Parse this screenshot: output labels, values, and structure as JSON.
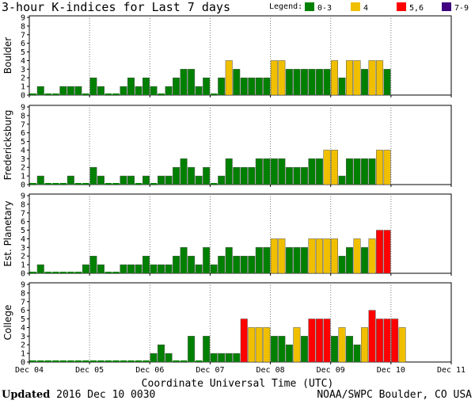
{
  "title": "3-hour K-indices for Last 7 days",
  "legend": {
    "label": "Legend:",
    "items": [
      {
        "label": "0-3",
        "color": "#008000"
      },
      {
        "label": "4",
        "color": "#f0c000"
      },
      {
        "label": "5,6",
        "color": "#ff0000"
      },
      {
        "label": "7-9",
        "color": "#400080"
      }
    ]
  },
  "footer": {
    "updated_label": "Updated",
    "updated_value": "2016 Dec 10 0030",
    "credit": "NOAA/SWPC Boulder, CO USA"
  },
  "chart_data": {
    "type": "bar",
    "xlabel": "Coordinate Universal Time (UTC)",
    "x_ticks": [
      "Dec 04",
      "Dec 05",
      "Dec 06",
      "Dec 07",
      "Dec 08",
      "Dec 09",
      "Dec 10",
      "Dec 11"
    ],
    "ylim": [
      0,
      9
    ],
    "y_ticks": [
      0,
      1,
      2,
      3,
      4,
      5,
      6,
      7,
      8,
      9
    ],
    "bins_per_day": 8,
    "days": 7,
    "color_scale": {
      "0-3": "#008000",
      "4": "#f0c000",
      "5,6": "#ff0000",
      "7-9": "#400080"
    },
    "panels": [
      {
        "name": "Boulder",
        "values": [
          0,
          1,
          0,
          0,
          1,
          1,
          1,
          0,
          2,
          1,
          0,
          0,
          1,
          2,
          1,
          2,
          1,
          0,
          1,
          2,
          3,
          3,
          1,
          2,
          0,
          2,
          4,
          3,
          2,
          2,
          2,
          2,
          4,
          4,
          3,
          3,
          3,
          3,
          3,
          3,
          4,
          2,
          4,
          4,
          3,
          4,
          4,
          3
        ]
      },
      {
        "name": "Fredericksburg",
        "values": [
          0,
          1,
          0,
          0,
          0,
          1,
          0,
          0,
          2,
          1,
          0,
          0,
          1,
          1,
          0,
          1,
          0,
          1,
          1,
          2,
          3,
          2,
          1,
          2,
          0,
          1,
          3,
          2,
          2,
          2,
          3,
          3,
          3,
          3,
          2,
          2,
          2,
          3,
          3,
          4,
          4,
          1,
          3,
          3,
          3,
          3,
          4,
          4
        ]
      },
      {
        "name": "Est. Planetary",
        "values": [
          0,
          1,
          0,
          0,
          0,
          0,
          0,
          1,
          2,
          1,
          0,
          0,
          1,
          1,
          1,
          2,
          1,
          1,
          1,
          2,
          3,
          2,
          1,
          3,
          1,
          2,
          3,
          2,
          2,
          2,
          3,
          3,
          4,
          4,
          3,
          3,
          3,
          4,
          4,
          4,
          4,
          2,
          3,
          4,
          3,
          4,
          5,
          5
        ]
      },
      {
        "name": "College",
        "values": [
          0,
          0,
          0,
          0,
          0,
          0,
          0,
          0,
          0,
          0,
          0,
          0,
          0,
          0,
          0,
          0,
          1,
          2,
          1,
          0,
          0,
          3,
          0,
          3,
          1,
          1,
          1,
          1,
          5,
          4,
          4,
          4,
          3,
          3,
          2,
          4,
          3,
          5,
          5,
          5,
          3,
          4,
          3,
          2,
          4,
          6,
          5,
          5,
          5,
          4
        ]
      }
    ]
  }
}
